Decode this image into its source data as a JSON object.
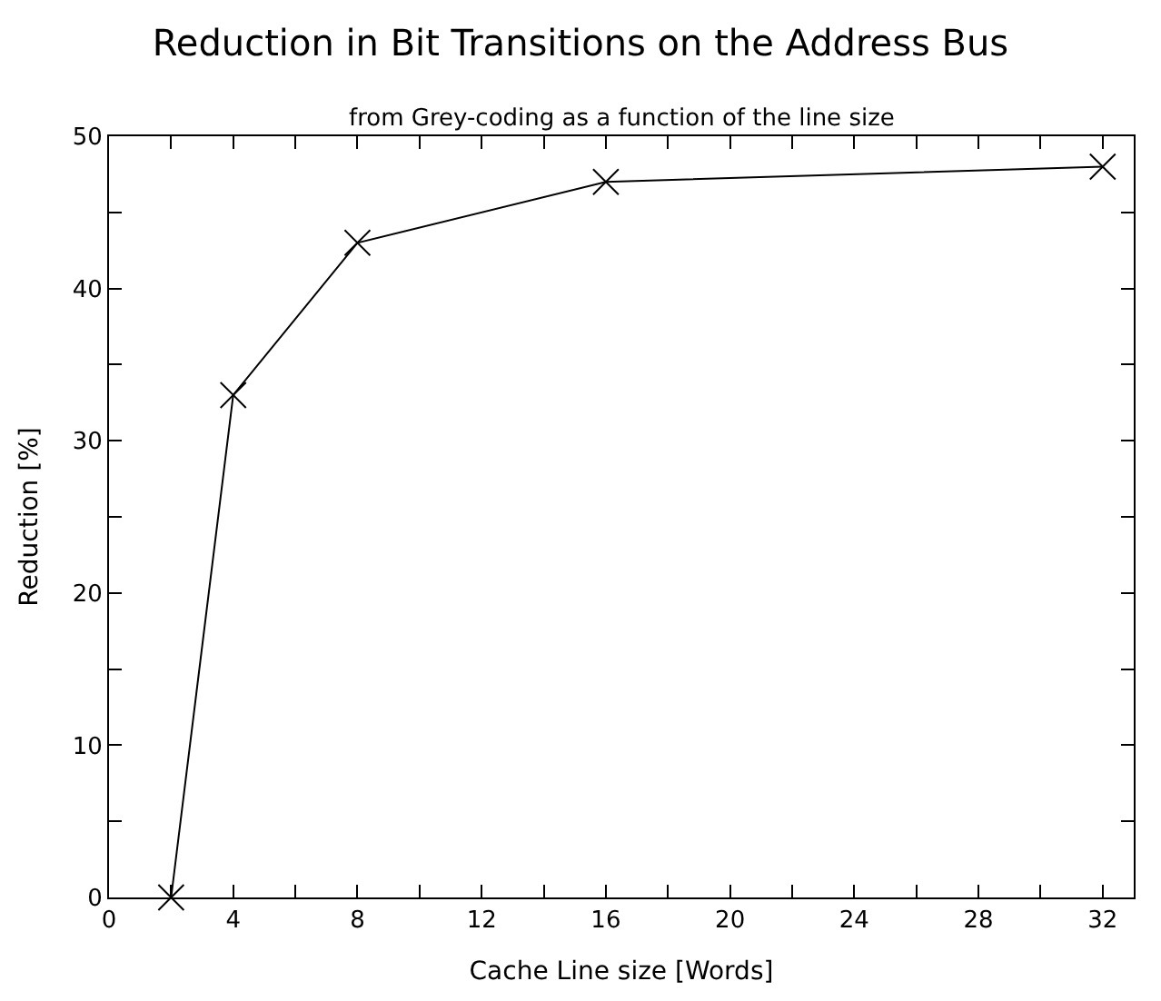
{
  "chart_data": {
    "type": "line",
    "title": "Reduction in Bit Transitions on the Address Bus",
    "subtitle": "from Grey-coding as a function of the line size",
    "xlabel": "Cache Line size [Words]",
    "ylabel": "Reduction [%]",
    "x": [
      2,
      4,
      8,
      16,
      32
    ],
    "series": [
      {
        "color": "#000000",
        "values": [
          0,
          33,
          43,
          47,
          48
        ]
      }
    ],
    "xlim": [
      0,
      33
    ],
    "ylim": [
      0,
      50
    ],
    "xticks": [
      0,
      {
        "value": 2,
        "label": null
      },
      4,
      {
        "value": 6,
        "label": null
      },
      8,
      {
        "value": 10,
        "label": null
      },
      12,
      {
        "value": 14,
        "label": null
      },
      16,
      {
        "value": 18,
        "label": null
      },
      20,
      {
        "value": 22,
        "label": null
      },
      24,
      {
        "value": 26,
        "label": null
      },
      28,
      {
        "value": 30,
        "label": null
      },
      32
    ],
    "yticks": [
      0,
      {
        "value": 5,
        "label": null
      },
      10,
      {
        "value": 15,
        "label": null
      },
      20,
      {
        "value": 25,
        "label": null
      },
      30,
      {
        "value": 35,
        "label": null
      },
      40,
      {
        "value": 45,
        "label": null
      },
      50
    ],
    "marker": "cross"
  }
}
